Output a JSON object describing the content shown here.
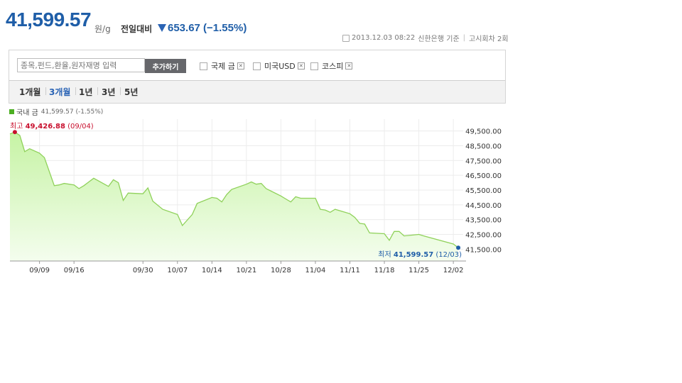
{
  "header": {
    "price": "41,599.57",
    "unit": "원/g",
    "change_label": "전일대비",
    "change_value": "653.67 (−1.55%)",
    "direction_color": "#2b64b5",
    "timestamp": "2013.12.03 08:22",
    "source": "신한은행 기준",
    "notice_count": "고시회차 2회"
  },
  "toolbar": {
    "search_placeholder": "종목,펀드,환율,원자재명 입력",
    "add_label": "추가하기",
    "compare_items": [
      "국제 금",
      "미국USD",
      "코스피"
    ]
  },
  "periods": {
    "items": [
      "1개월",
      "3개월",
      "1년",
      "3년",
      "5년"
    ],
    "active_index": 1
  },
  "legend": {
    "name": "국내 금",
    "value": "41,599.57 (-1.55%)",
    "color": "#4cae22"
  },
  "chart_data": {
    "type": "area",
    "series_name": "국내 금",
    "color": "#8fd15a",
    "fill_top": "#c6f3a4",
    "ylim": [
      40700,
      50300
    ],
    "yticks": [
      49500,
      48500,
      47500,
      46500,
      45500,
      44500,
      43500,
      42500,
      41500
    ],
    "ytick_labels": [
      "49,500.00",
      "48,500.00",
      "47,500.00",
      "46,500.00",
      "45,500.00",
      "44,500.00",
      "43,500.00",
      "42,500.00",
      "41,500.00"
    ],
    "x_ticks": [
      {
        "date": "2013-09-09",
        "label": "09/09"
      },
      {
        "date": "2013-09-16",
        "label": "09/16"
      },
      {
        "date": "2013-09-30",
        "label": "09/30"
      },
      {
        "date": "2013-10-07",
        "label": "10/07"
      },
      {
        "date": "2013-10-14",
        "label": "10/14"
      },
      {
        "date": "2013-10-21",
        "label": "10/21"
      },
      {
        "date": "2013-10-28",
        "label": "10/28"
      },
      {
        "date": "2013-11-04",
        "label": "11/04"
      },
      {
        "date": "2013-11-11",
        "label": "11/11"
      },
      {
        "date": "2013-11-18",
        "label": "11/18"
      },
      {
        "date": "2013-11-25",
        "label": "11/25"
      },
      {
        "date": "2013-12-02",
        "label": "12/02"
      }
    ],
    "x_range": [
      "2013-09-03",
      "2013-12-04"
    ],
    "points": [
      [
        "2013-09-03",
        49300
      ],
      [
        "2013-09-04",
        49426.88
      ],
      [
        "2013-09-05",
        49200
      ],
      [
        "2013-09-06",
        48100
      ],
      [
        "2013-09-07",
        48300
      ],
      [
        "2013-09-09",
        48000
      ],
      [
        "2013-09-10",
        47700
      ],
      [
        "2013-09-12",
        45800
      ],
      [
        "2013-09-13",
        45850
      ],
      [
        "2013-09-14",
        45950
      ],
      [
        "2013-09-16",
        45850
      ],
      [
        "2013-09-17",
        45600
      ],
      [
        "2013-09-18",
        45800
      ],
      [
        "2013-09-20",
        46300
      ],
      [
        "2013-09-23",
        45750
      ],
      [
        "2013-09-24",
        46200
      ],
      [
        "2013-09-25",
        46000
      ],
      [
        "2013-09-26",
        44800
      ],
      [
        "2013-09-27",
        45300
      ],
      [
        "2013-09-30",
        45250
      ],
      [
        "2013-10-01",
        45650
      ],
      [
        "2013-10-02",
        44750
      ],
      [
        "2013-10-04",
        44200
      ],
      [
        "2013-10-07",
        43850
      ],
      [
        "2013-10-08",
        43100
      ],
      [
        "2013-10-10",
        43850
      ],
      [
        "2013-10-11",
        44600
      ],
      [
        "2013-10-14",
        45000
      ],
      [
        "2013-10-15",
        44950
      ],
      [
        "2013-10-16",
        44700
      ],
      [
        "2013-10-17",
        45200
      ],
      [
        "2013-10-18",
        45550
      ],
      [
        "2013-10-21",
        45900
      ],
      [
        "2013-10-22",
        46050
      ],
      [
        "2013-10-23",
        45900
      ],
      [
        "2013-10-24",
        45950
      ],
      [
        "2013-10-25",
        45600
      ],
      [
        "2013-10-28",
        45100
      ],
      [
        "2013-10-29",
        44900
      ],
      [
        "2013-10-30",
        44700
      ],
      [
        "2013-10-31",
        45050
      ],
      [
        "2013-11-01",
        44950
      ],
      [
        "2013-11-04",
        44950
      ],
      [
        "2013-11-05",
        44200
      ],
      [
        "2013-11-06",
        44150
      ],
      [
        "2013-11-07",
        44000
      ],
      [
        "2013-11-08",
        44200
      ],
      [
        "2013-11-11",
        43900
      ],
      [
        "2013-11-12",
        43650
      ],
      [
        "2013-11-13",
        43250
      ],
      [
        "2013-11-14",
        43200
      ],
      [
        "2013-11-15",
        42600
      ],
      [
        "2013-11-18",
        42550
      ],
      [
        "2013-11-19",
        42100
      ],
      [
        "2013-11-20",
        42700
      ],
      [
        "2013-11-21",
        42700
      ],
      [
        "2013-11-22",
        42400
      ],
      [
        "2013-11-25",
        42500
      ],
      [
        "2013-11-26",
        42400
      ],
      [
        "2013-12-02",
        41850
      ],
      [
        "2013-12-03",
        41599.57
      ]
    ],
    "max_label": {
      "prefix": "최고",
      "value": "49,426.88",
      "date": "(09/04)",
      "x": "2013-09-04",
      "y": 49426.88,
      "color": "#c8102e"
    },
    "min_label": {
      "prefix": "최저",
      "value": "41,599.57",
      "date": "(12/03)",
      "x": "2013-12-03",
      "y": 41599.57,
      "color": "#1f5ea8"
    },
    "grid": true
  }
}
